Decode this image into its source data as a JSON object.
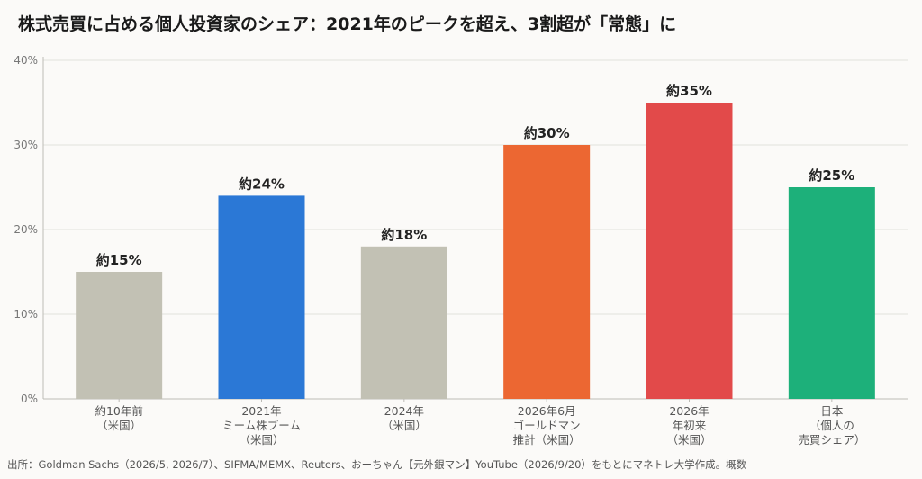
{
  "chart_data": {
    "type": "bar",
    "title": "株式売買に占める個人投資家のシェア：2021年のピークを超え、3割超が「常態」に",
    "categories": [
      [
        "約10年前",
        "（米国）"
      ],
      [
        "2021年",
        "ミーム株ブーム",
        "（米国）"
      ],
      [
        "2024年",
        "（米国）"
      ],
      [
        "2026年6月",
        "ゴールドマン",
        "推計（米国）"
      ],
      [
        "2026年",
        "年初来",
        "（米国）"
      ],
      [
        "日本",
        "（個人の",
        "売買シェア）"
      ]
    ],
    "values": [
      15,
      24,
      18,
      30,
      35,
      25
    ],
    "data_labels": [
      "約15%",
      "約24%",
      "約18%",
      "約30%",
      "約35%",
      "約25%"
    ],
    "colors": [
      "#c2c1b4",
      "#2b78d6",
      "#c2c1b4",
      "#ec6732",
      "#e24a4a",
      "#1db07a"
    ],
    "ylim": [
      0,
      40
    ],
    "yticks": [
      0,
      10,
      20,
      30,
      40
    ],
    "ytick_labels": [
      "0%",
      "10%",
      "20%",
      "30%",
      "40%"
    ],
    "grid": true,
    "xlabel": "",
    "ylabel": ""
  },
  "source": "出所：Goldman Sachs（2026/5, 2026/7）、SIFMA/MEMX、Reuters、おーちゃん【元外銀マン】YouTube（2026/9/20）をもとにマネトレ大学作成。概数"
}
